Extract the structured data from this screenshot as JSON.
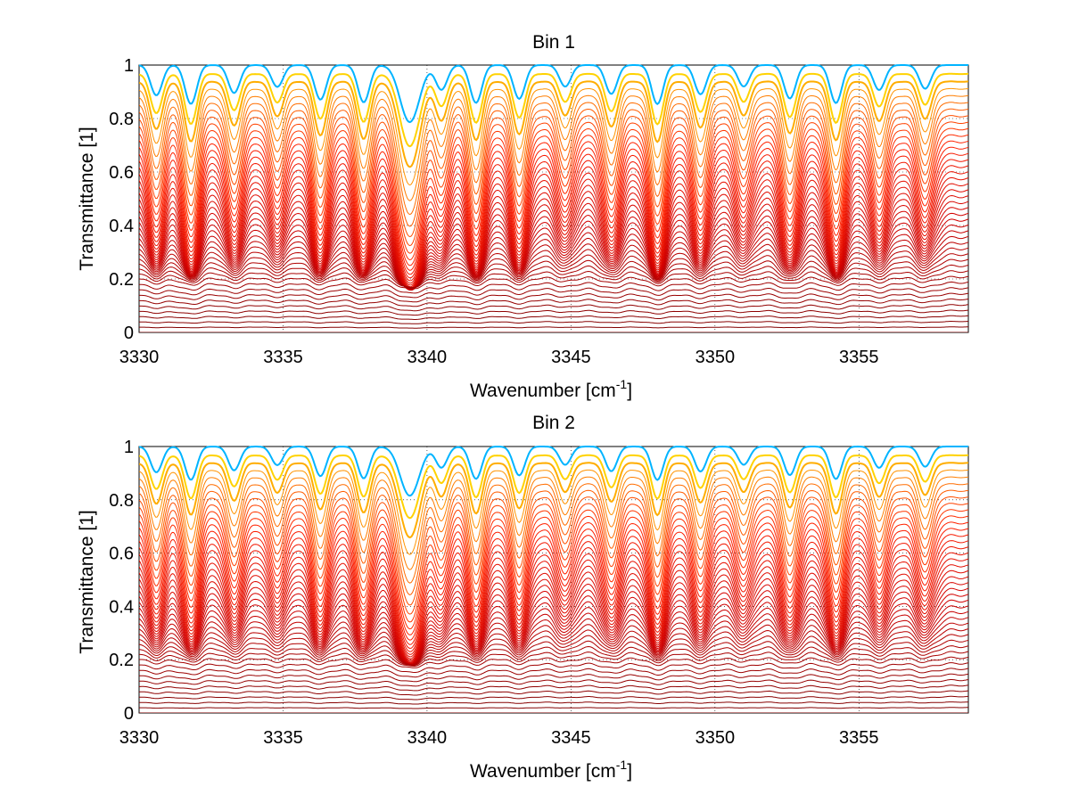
{
  "chart_data": [
    {
      "type": "line",
      "title": "Bin 1",
      "xlabel_main": "Wavenumber [cm",
      "xlabel_sup": "-1",
      "xlabel_close": "]",
      "ylabel": "Transmittance [1]",
      "xlim": [
        3330,
        3358.8
      ],
      "ylim": [
        0,
        1
      ],
      "xticks": [
        "3330",
        "3335",
        "3340",
        "3345",
        "3350",
        "3355"
      ],
      "yticks": [
        "0",
        "0.2",
        "0.4",
        "0.6",
        "0.8",
        "1"
      ],
      "grid": "dotted",
      "colormap": [
        "#00008f",
        "#0060ff",
        "#00d0ff",
        "#ffe000",
        "#ff8000",
        "#ff2000",
        "#d00000",
        "#800000"
      ],
      "absorption_lines_cm1": [
        3330.6,
        3331.8,
        3333.3,
        3334.8,
        3336.3,
        3337.8,
        3339.4,
        3340.5,
        3341.7,
        3343.2,
        3344.8,
        3346.4,
        3348.0,
        3349.5,
        3351.0,
        3352.6,
        3354.2,
        3355.7,
        3357.3
      ],
      "series_count": 45,
      "baseline_range": [
        0.0,
        1.0
      ]
    },
    {
      "type": "line",
      "title": "Bin 2",
      "xlabel_main": "Wavenumber [cm",
      "xlabel_sup": "-1",
      "xlabel_close": "]",
      "ylabel": "Transmittance [1]",
      "xlim": [
        3330,
        3358.8
      ],
      "ylim": [
        0,
        1
      ],
      "xticks": [
        "3330",
        "3335",
        "3340",
        "3345",
        "3350",
        "3355"
      ],
      "yticks": [
        "0",
        "0.2",
        "0.4",
        "0.6",
        "0.8",
        "1"
      ],
      "grid": "dotted",
      "colormap": [
        "#00008f",
        "#0060ff",
        "#00d0ff",
        "#ffe000",
        "#ff8000",
        "#ff2000",
        "#d00000",
        "#800000"
      ],
      "absorption_lines_cm1": [
        3330.6,
        3331.8,
        3333.3,
        3334.8,
        3336.3,
        3337.8,
        3339.4,
        3340.5,
        3341.7,
        3343.2,
        3344.8,
        3346.4,
        3348.0,
        3349.5,
        3351.0,
        3352.6,
        3354.2,
        3355.7,
        3357.3
      ],
      "series_count": 45,
      "baseline_range": [
        0.0,
        1.0
      ]
    }
  ]
}
